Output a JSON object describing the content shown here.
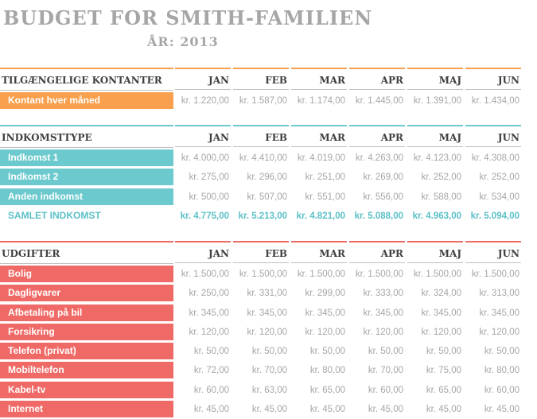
{
  "title": "BUDGET FOR SMITH-FAMILIEN",
  "year": "ÅR: 2013",
  "months": [
    "JAN",
    "FEB",
    "MAR",
    "APR",
    "MAJ",
    "JUN"
  ],
  "colors": {
    "orange": "#f9a04e",
    "teal": "#6cc9cd",
    "red": "#ef6a66",
    "text_gray": "#a6a6a6",
    "teal_text": "#5bc0c7"
  },
  "cash": {
    "header": "TILGÆNGELIGE KONTANTER",
    "rows": [
      {
        "label": "Kontant hver måned",
        "values": [
          "kr. 1.220,00",
          "kr. 1.587,00",
          "kr. 1.174,00",
          "kr. 1.445,00",
          "kr. 1.391,00",
          "kr. 1.434,00"
        ]
      }
    ]
  },
  "income": {
    "header": "INDKOMSTTYPE",
    "rows": [
      {
        "label": "Indkomst 1",
        "values": [
          "kr. 4.000,00",
          "kr. 4.410,00",
          "kr. 4.019,00",
          "kr. 4.263,00",
          "kr. 4.123,00",
          "kr. 4.308,00"
        ]
      },
      {
        "label": "Indkomst 2",
        "values": [
          "kr. 275,00",
          "kr. 296,00",
          "kr. 251,00",
          "kr. 269,00",
          "kr. 252,00",
          "kr. 252,00"
        ]
      },
      {
        "label": "Anden indkomst",
        "values": [
          "kr. 500,00",
          "kr. 507,00",
          "kr. 551,00",
          "kr. 556,00",
          "kr. 588,00",
          "kr. 534,00"
        ]
      }
    ],
    "total": {
      "label": "SAMLET INDKOMST",
      "values": [
        "kr. 4.775,00",
        "kr. 5.213,00",
        "kr. 4.821,00",
        "kr. 5.088,00",
        "kr. 4.963,00",
        "kr. 5.094,00"
      ]
    }
  },
  "expenses": {
    "header": "UDGIFTER",
    "rows": [
      {
        "label": "Bolig",
        "values": [
          "kr. 1.500,00",
          "kr. 1.500,00",
          "kr. 1.500,00",
          "kr. 1.500,00",
          "kr. 1.500,00",
          "kr. 1.500,00"
        ]
      },
      {
        "label": "Dagligvarer",
        "values": [
          "kr. 250,00",
          "kr. 331,00",
          "kr. 299,00",
          "kr. 333,00",
          "kr. 324,00",
          "kr. 313,00"
        ]
      },
      {
        "label": "Afbetaling på bil",
        "values": [
          "kr. 345,00",
          "kr. 345,00",
          "kr. 345,00",
          "kr. 345,00",
          "kr. 345,00",
          "kr. 345,00"
        ]
      },
      {
        "label": "Forsikring",
        "values": [
          "kr. 120,00",
          "kr. 120,00",
          "kr. 120,00",
          "kr. 120,00",
          "kr. 120,00",
          "kr. 120,00"
        ]
      },
      {
        "label": "Telefon (privat)",
        "values": [
          "kr. 50,00",
          "kr. 50,00",
          "kr. 50,00",
          "kr. 50,00",
          "kr. 50,00",
          "kr. 50,00"
        ]
      },
      {
        "label": "Mobiltelefon",
        "values": [
          "kr. 72,00",
          "kr. 70,00",
          "kr. 80,00",
          "kr. 70,00",
          "kr. 75,00",
          "kr. 80,00"
        ]
      },
      {
        "label": "Kabel-tv",
        "values": [
          "kr. 60,00",
          "kr. 63,00",
          "kr. 65,00",
          "kr. 60,00",
          "kr. 65,00",
          "kr. 60,00"
        ]
      },
      {
        "label": "Internet",
        "values": [
          "kr. 45,00",
          "kr. 45,00",
          "kr. 45,00",
          "kr. 45,00",
          "kr. 45,00",
          "kr. 45,00"
        ]
      }
    ]
  }
}
